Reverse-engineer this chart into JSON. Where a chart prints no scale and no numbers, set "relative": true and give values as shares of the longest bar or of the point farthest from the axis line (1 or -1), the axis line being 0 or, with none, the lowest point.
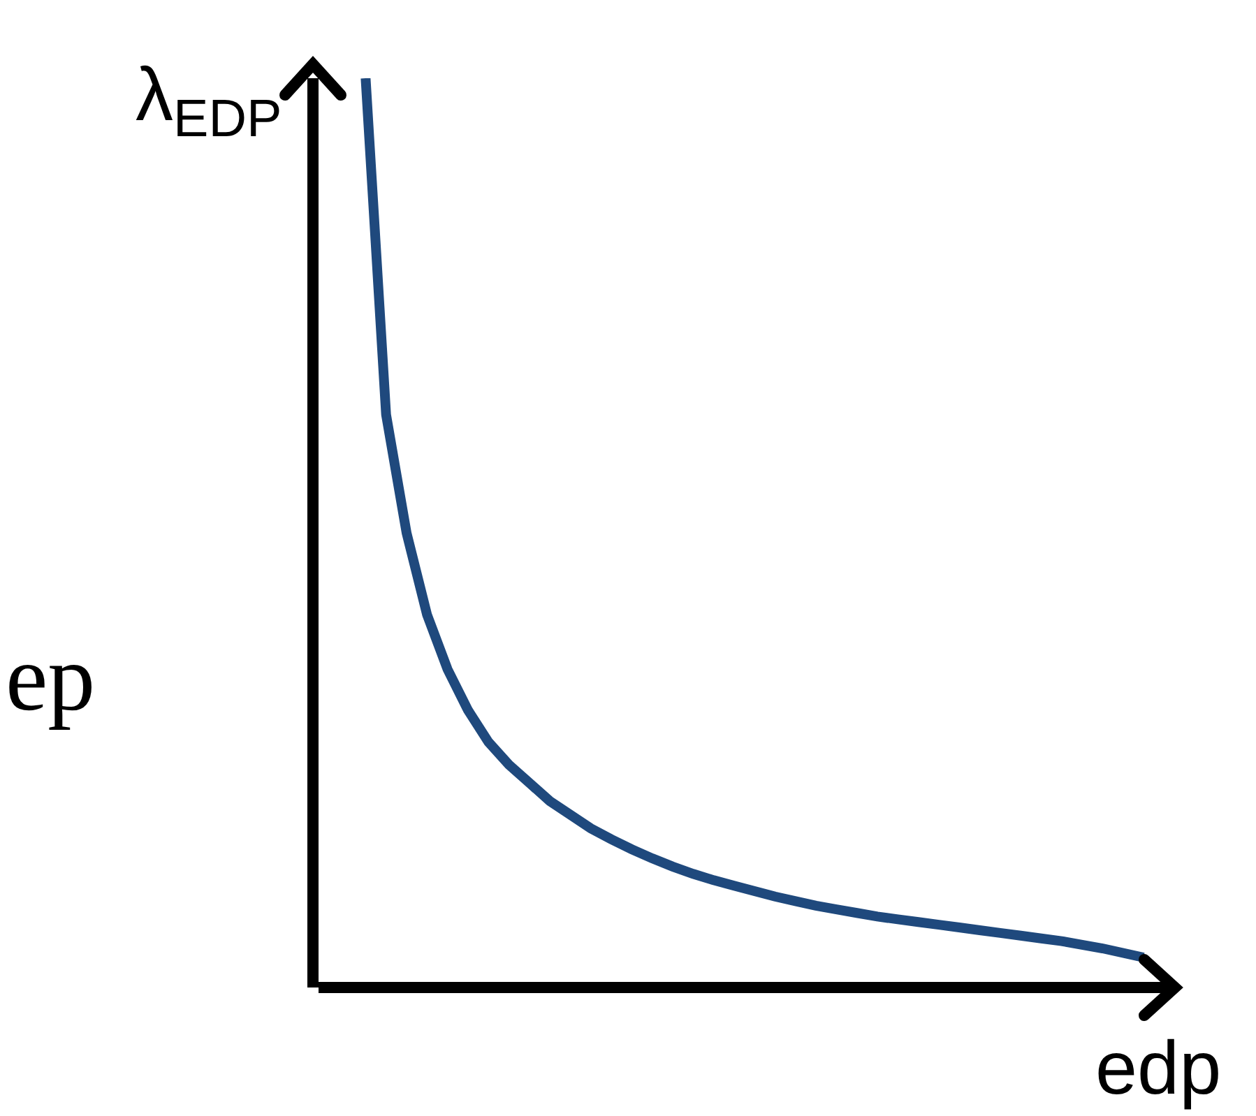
{
  "chart_data": {
    "type": "line",
    "relative": true,
    "xlabel": "edp",
    "ylabel": "λ$_{EDP}$",
    "annotations": [
      "ep"
    ],
    "grid": false,
    "marker": "none",
    "line_style": "solid",
    "categories": [
      null,
      null,
      null,
      null,
      null,
      null,
      null,
      null,
      null,
      null,
      null,
      null,
      null,
      null,
      null,
      null,
      null,
      null,
      null,
      null,
      null,
      null,
      null,
      null,
      null,
      null,
      null,
      null,
      null,
      null,
      null,
      null,
      null,
      null,
      null,
      null,
      null,
      null,
      null
    ],
    "series": [
      {
        "color": "#1f497d",
        "values": [
          1,
          0.63,
          0.5,
          0.41,
          0.35,
          0.305,
          0.27,
          0.245,
          0.225,
          0.205,
          0.19,
          0.175,
          0.163,
          0.152,
          0.142,
          0.133,
          0.125,
          0.118,
          0.112,
          0.106,
          0.1,
          0.095,
          0.09,
          0.086,
          0.082,
          0.078,
          0.075,
          0.072,
          0.069,
          0.066,
          0.063,
          0.06,
          0.057,
          0.054,
          0.051,
          0.047,
          0.043,
          0.038,
          0.033
        ]
      }
    ]
  }
}
